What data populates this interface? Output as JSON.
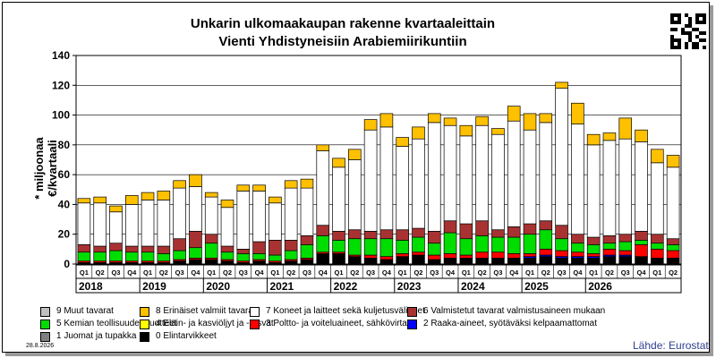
{
  "chart_data": {
    "type": "bar",
    "stacked": true,
    "title": "Unkarin ulkomaakaupan rakenne kvartaaleittain",
    "subtitle": "Vienti Yhdistyneisiin Arabiemiirikuntiin",
    "ylabel": "* miljoonaa €/kvartaali",
    "ylim": [
      0,
      140
    ],
    "yticks": [
      0,
      20,
      40,
      60,
      80,
      100,
      120,
      140
    ],
    "grid": true,
    "categories": [
      "Q1",
      "Q2",
      "Q3",
      "Q4",
      "Q1",
      "Q2",
      "Q3",
      "Q4",
      "Q1",
      "Q2",
      "Q3",
      "Q4",
      "Q1",
      "Q2",
      "Q3",
      "Q4",
      "Q1",
      "Q2",
      "Q3",
      "Q4",
      "Q1",
      "Q2",
      "Q3",
      "Q4",
      "Q1",
      "Q2",
      "Q3",
      "Q4",
      "Q1",
      "Q2",
      "Q3",
      "Q4",
      "Q1",
      "Q2",
      "Q3",
      "Q4",
      "Q1",
      "Q2"
    ],
    "years": [
      "2018",
      "2019",
      "2020",
      "2021",
      "2022",
      "2023",
      "2024",
      "2025",
      "2026"
    ],
    "series": [
      {
        "name": "0 Elintarvikkeet",
        "color": "#000000",
        "values": [
          1,
          1,
          1,
          1,
          1,
          1,
          2,
          3,
          3,
          2,
          1,
          2,
          1,
          2,
          3,
          7,
          7,
          5,
          4,
          3,
          5,
          6,
          3,
          4,
          4,
          4,
          4,
          4,
          4,
          5,
          4,
          4,
          4,
          5,
          5,
          5,
          4,
          4
        ]
      },
      {
        "name": "1 Juomat ja tupakka",
        "color": "#808080",
        "values": [
          0,
          0,
          0,
          0,
          0,
          0,
          0,
          0,
          0,
          0,
          0,
          0,
          0,
          0,
          0,
          0,
          0,
          0,
          0,
          0,
          0,
          0,
          0,
          0,
          0,
          0,
          0,
          0,
          0,
          0,
          0,
          0,
          0,
          0,
          0,
          0,
          0,
          0
        ]
      },
      {
        "name": "2 Raaka-aineet, syötäväksi kelpaamattomat",
        "color": "#0000ff",
        "values": [
          0,
          0,
          0,
          0,
          0,
          0,
          0,
          0,
          0,
          0,
          0,
          0,
          0,
          0,
          0,
          0,
          0,
          0,
          0,
          0,
          0,
          0,
          0,
          0,
          0,
          0,
          0,
          0,
          1,
          1,
          1,
          1,
          1,
          1,
          1,
          0,
          0,
          0
        ]
      },
      {
        "name": "3 Poltto- ja voiteluaineet, sähkövirta",
        "color": "#ff0000",
        "values": [
          1,
          1,
          1,
          1,
          1,
          1,
          1,
          1,
          1,
          1,
          1,
          1,
          1,
          1,
          1,
          1,
          1,
          1,
          2,
          2,
          2,
          2,
          3,
          3,
          2,
          4,
          4,
          3,
          2,
          4,
          4,
          3,
          2,
          4,
          3,
          8,
          6,
          5
        ]
      },
      {
        "name": "4 Eläin- ja kasviöljyt ja -rasvat",
        "color": "#ffff00",
        "values": [
          0,
          0,
          0,
          0,
          0,
          0,
          0,
          0,
          0,
          0,
          0,
          0,
          0,
          0,
          0,
          0,
          0,
          0,
          0,
          0,
          0,
          0,
          0,
          0,
          0,
          0,
          0,
          0,
          0,
          0,
          0,
          0,
          0,
          0,
          0,
          0,
          0,
          0
        ]
      },
      {
        "name": "5 Kemian teollisuuden tuotteet",
        "color": "#00dd00",
        "values": [
          6,
          6,
          7,
          6,
          6,
          5,
          6,
          7,
          10,
          5,
          5,
          4,
          4,
          6,
          9,
          11,
          8,
          11,
          11,
          12,
          9,
          10,
          8,
          14,
          11,
          11,
          10,
          11,
          13,
          13,
          8,
          6,
          6,
          4,
          6,
          3,
          4,
          4
        ]
      },
      {
        "name": "6 Valmistetut tavarat valmistusaineen mukaan",
        "color": "#a83232",
        "values": [
          5,
          4,
          5,
          4,
          4,
          5,
          8,
          11,
          6,
          4,
          3,
          8,
          10,
          7,
          6,
          7,
          6,
          6,
          5,
          6,
          7,
          6,
          8,
          8,
          10,
          10,
          5,
          7,
          7,
          6,
          9,
          6,
          5,
          5,
          5,
          6,
          6,
          4
        ]
      },
      {
        "name": "7 Koneet ja laitteet sekä kuljetusvälineet",
        "color": "#ffffff",
        "values": [
          28,
          29,
          21,
          28,
          31,
          31,
          34,
          30,
          25,
          26,
          39,
          34,
          25,
          35,
          32,
          50,
          43,
          47,
          68,
          69,
          56,
          60,
          73,
          64,
          59,
          64,
          64,
          71,
          63,
          66,
          92,
          74,
          62,
          64,
          64,
          60,
          48,
          48
        ]
      },
      {
        "name": "8 Erinäiset valmiit tavarat",
        "color": "#ffc000",
        "values": [
          3,
          4,
          4,
          6,
          5,
          6,
          5,
          8,
          3,
          5,
          4,
          4,
          4,
          5,
          6,
          4,
          6,
          7,
          7,
          9,
          6,
          8,
          6,
          5,
          7,
          6,
          4,
          10,
          11,
          6,
          4,
          14,
          7,
          5,
          14,
          8,
          9,
          8
        ]
      },
      {
        "name": "9 Muut tavarat",
        "color": "#c0c0c0",
        "values": [
          0,
          0,
          0,
          0,
          0,
          0,
          0,
          0,
          0,
          0,
          0,
          0,
          0,
          0,
          0,
          0,
          0,
          0,
          0,
          0,
          0,
          0,
          0,
          0,
          0,
          0,
          0,
          0,
          0,
          0,
          0,
          0,
          0,
          0,
          0,
          0,
          0,
          0
        ]
      }
    ],
    "legend": "bottom"
  },
  "footer": {
    "date": "28.8.2026",
    "source": "Lähde: Eurostat"
  }
}
